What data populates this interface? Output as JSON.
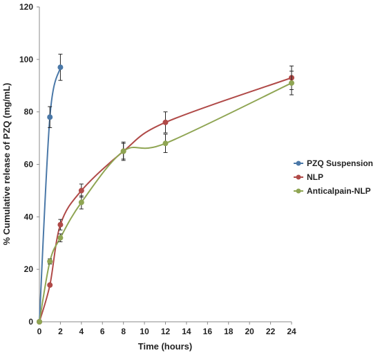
{
  "chart_data": {
    "type": "line",
    "title": "",
    "xlabel": "Time (hours)",
    "ylabel": "% Cumulative release of PZQ (mg/mL)",
    "xlim": [
      0,
      24
    ],
    "ylim": [
      0,
      120
    ],
    "xticks": [
      0,
      2,
      4,
      6,
      8,
      10,
      12,
      14,
      16,
      18,
      20,
      22,
      24
    ],
    "yticks": [
      0,
      20,
      40,
      60,
      80,
      100,
      120
    ],
    "grid": false,
    "legend_position": "right",
    "series": [
      {
        "name": "PZQ Suspension",
        "color": "#4a78a8",
        "x": [
          0,
          1,
          2
        ],
        "y": [
          0,
          78,
          97
        ],
        "err": [
          0,
          4,
          5
        ]
      },
      {
        "name": "NLP",
        "color": "#b04a48",
        "x": [
          0,
          1,
          2,
          4,
          8,
          12,
          24
        ],
        "y": [
          0,
          14,
          37,
          50,
          65,
          76,
          93
        ],
        "err": [
          0,
          0,
          2,
          2.5,
          3,
          4,
          4.5
        ]
      },
      {
        "name": "Anticalpain-NLP",
        "color": "#8fa553",
        "x": [
          0,
          1,
          2,
          4,
          8,
          12,
          24
        ],
        "y": [
          0,
          23,
          32,
          45.5,
          65,
          68,
          91
        ],
        "err": [
          0,
          1,
          1.5,
          2.5,
          3.5,
          3.5,
          4.5
        ]
      }
    ]
  }
}
